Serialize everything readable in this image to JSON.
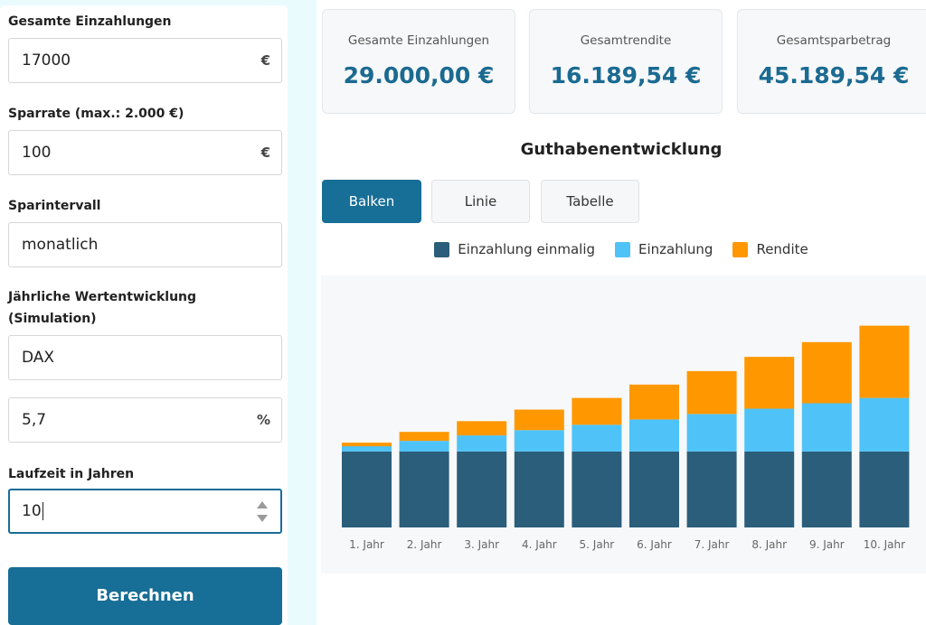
{
  "form": {
    "deposit_label": "Gesamte Einzahlungen",
    "deposit_value": "17000",
    "deposit_suffix": "€",
    "rate_label": "Sparrate (max.: 2.000 €)",
    "rate_value": "100",
    "rate_suffix": "€",
    "interval_label": "Sparintervall",
    "interval_value": "monatlich",
    "growth_label_line1": "Jährliche Wertentwicklung",
    "growth_label_line2": "(Simulation)",
    "index_value": "DAX",
    "percent_value": "5,7",
    "percent_suffix": "%",
    "duration_label": "Laufzeit in Jahren",
    "duration_value": "10",
    "calc_button": "Berechnen"
  },
  "stats": [
    {
      "label": "Gesamte Einzahlungen",
      "value": "29.000,00 €"
    },
    {
      "label": "Gesamtrendite",
      "value": "16.189,54 €"
    },
    {
      "label": "Gesamtsparbetrag",
      "value": "45.189,54 €"
    }
  ],
  "section_title": "Guthabenentwicklung",
  "tabs": [
    {
      "label": "Balken",
      "active": true
    },
    {
      "label": "Linie",
      "active": false
    },
    {
      "label": "Tabelle",
      "active": false
    }
  ],
  "colors": {
    "accent": "#176e96",
    "single_deposit": "#2b5e7a",
    "deposit": "#4fc3f7",
    "return": "#ff9800"
  },
  "chart_data": {
    "type": "bar",
    "stacked": true,
    "categories": [
      "1. Jahr",
      "2. Jahr",
      "3. Jahr",
      "4. Jahr",
      "5. Jahr",
      "6. Jahr",
      "7. Jahr",
      "8. Jahr",
      "9. Jahr",
      "10. Jahr"
    ],
    "series": [
      {
        "name": "Einzahlung einmalig",
        "color": "#2b5e7a",
        "values": [
          17000,
          17000,
          17000,
          17000,
          17000,
          17000,
          17000,
          17000,
          17000,
          17000
        ]
      },
      {
        "name": "Einzahlung",
        "color": "#4fc3f7",
        "values": [
          1200,
          2400,
          3600,
          4800,
          6000,
          7200,
          8400,
          9600,
          10800,
          12000
        ]
      },
      {
        "name": "Rendite",
        "color": "#ff9800",
        "values": [
          800,
          2000,
          3200,
          4600,
          6000,
          7800,
          9600,
          11600,
          13700,
          16189.54
        ]
      }
    ],
    "ylim": [
      0,
      54000
    ],
    "grid": false,
    "legend": "top-center"
  }
}
